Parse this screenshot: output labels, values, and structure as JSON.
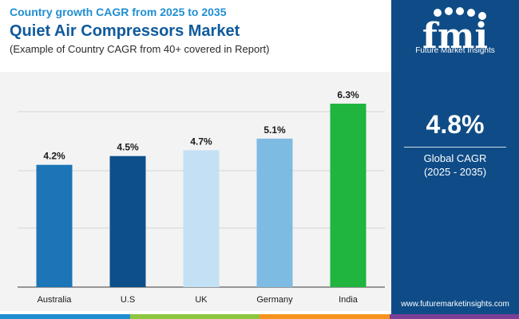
{
  "header": {
    "supertitle": "Country growth CAGR from 2025 to 2035",
    "title": "Quiet Air Compressors Market",
    "subtitle": "(Example of Country CAGR from 40+ covered in Report)"
  },
  "chart_data": {
    "type": "bar",
    "categories": [
      "Australia",
      "U.S",
      "UK",
      "Germany",
      "India"
    ],
    "values": [
      4.2,
      4.5,
      4.7,
      5.1,
      6.3
    ],
    "value_labels": [
      "4.2%",
      "4.5%",
      "4.7%",
      "5.1%",
      "6.3%"
    ],
    "bar_colors": [
      "#1b75b6",
      "#0c4f8a",
      "#c4e0f4",
      "#7dbbe3",
      "#1fb53f"
    ],
    "ylim": [
      0,
      6.3
    ],
    "unit": "%",
    "grid": true,
    "title": "",
    "xlabel": "",
    "ylabel": ""
  },
  "sidebar": {
    "brand_letters": "fmi",
    "brand_name": "Future Market Insights",
    "cagr_value": "4.8%",
    "cagr_label": "Global CAGR",
    "cagr_period": "(2025 - 2035)",
    "website": "www.futuremarketinsights.com"
  },
  "colors": {
    "sidebar_bg": "#0f4c87",
    "accent_blue": "#1f8fd1",
    "title_blue": "#0f5a9c",
    "chart_bg": "#f3f3f3",
    "bottom_bar": [
      "#1f8fd1",
      "#8dc63f",
      "#f7941d",
      "#7b3f98"
    ]
  }
}
